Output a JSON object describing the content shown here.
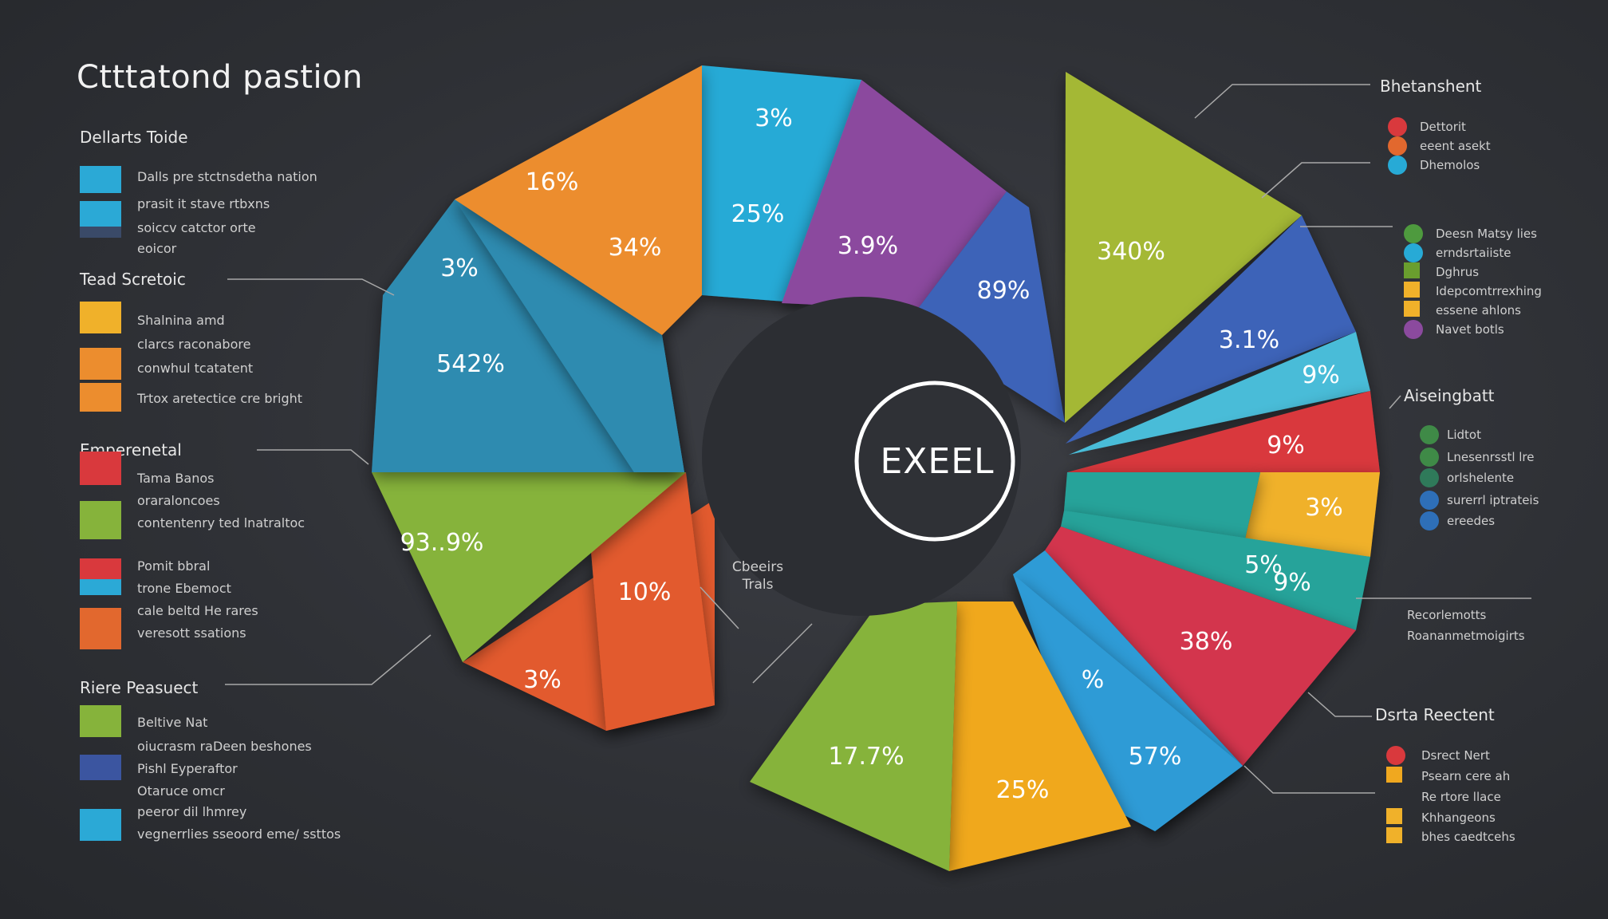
{
  "title": "Ctttatond pastion",
  "center_label": "EXEEL",
  "inner_note": [
    "Cbeeirs",
    "Trals"
  ],
  "colors": {
    "background": "#2f3136",
    "orange": "#ec8d2e",
    "cyan": "#27aad6",
    "purple": "#8b4a9e",
    "blue": "#3d63b8",
    "teal": "#2d8bb0",
    "green": "#86b33b",
    "red_orange": "#e25a2d",
    "lime": "#a4b834",
    "red": "#d9393d",
    "yellow": "#f0a81f",
    "crimson": "#d3344e",
    "sea": "#27a39a"
  },
  "left_sections": [
    {
      "heading": "Dellarts Toide",
      "items": [
        {
          "text": "Dalls pre stctnsdetha nation",
          "color": "#2ba9d6"
        },
        {
          "text": "prasit it stave rtbxns",
          "color": "#2ba9d6"
        },
        {
          "text": "soiccv catctor orte",
          "color": "#3a4a68"
        },
        {
          "text": "eoicor",
          "color": ""
        }
      ]
    },
    {
      "heading": "Tead  Scretoic",
      "items": [
        {
          "text": "Shalnina amd",
          "color": "#f0b12a"
        },
        {
          "text": "clarcs raconabore",
          "color": "#ec8d2e"
        },
        {
          "text": "conwhul tcatatent",
          "color": "#ec8d2e"
        },
        {
          "text": "Trtox aretectice cre bright",
          "color": "#3b55a0"
        }
      ]
    },
    {
      "heading": "Emperenetal",
      "items": [
        {
          "text": "Tama Banos",
          "color": "#d9393d"
        },
        {
          "text": "oraraloncoes",
          "color": "#86b33b"
        },
        {
          "text": "contentenry ted lnatraltoc",
          "color": "#86b33b"
        },
        {
          "text": "Pomit bbral",
          "color": "#d9393d"
        },
        {
          "text": "trone Ebemoct",
          "color": "#2ba9d6"
        },
        {
          "text": "cale beltd He rares",
          "color": "#e2682e"
        },
        {
          "text": "veresott ssations",
          "color": "#e2682e"
        }
      ]
    },
    {
      "heading": "Riere  Peasuect",
      "items": [
        {
          "text": "Beltive Nat",
          "color": "#86b33b"
        },
        {
          "text": "oiucrasm raDeen beshones",
          "color": ""
        },
        {
          "text": "Pishl Eyperaftor",
          "color": "#3b55a0"
        },
        {
          "text": "Otaruce omcr",
          "color": ""
        },
        {
          "text": "peeror dil lhmrey",
          "color": "#2ba9d6"
        },
        {
          "text": "vegnerrlies sseoord eme/ ssttos",
          "color": ""
        }
      ]
    }
  ],
  "right_sections": [
    {
      "heading": "Bhetanshent",
      "items": [
        {
          "text": "Dettorit",
          "color": "#d9393d",
          "shape": "dot"
        },
        {
          "text": "eeent asekt",
          "color": "#e2682e",
          "shape": "dot"
        },
        {
          "text": "Dhemolos",
          "color": "#27aad6",
          "shape": "dot"
        }
      ]
    },
    {
      "heading": "",
      "items": [
        {
          "text": "Deesn Matsy lies",
          "color": "#4e9a3e",
          "shape": "dot"
        },
        {
          "text": "erndsrtaiiste",
          "color": "#27aad6",
          "shape": "dot"
        },
        {
          "text": "Dghrus",
          "color": "#6a9e2e",
          "shape": "sq"
        },
        {
          "text": "Idepcomtrrexhing",
          "color": "#f0b12a",
          "shape": "sq"
        },
        {
          "text": "essene ahlons",
          "color": "#f0b12a",
          "shape": "sq"
        },
        {
          "text": "Navet botls",
          "color": "#8b4a9e",
          "shape": "dot"
        }
      ]
    },
    {
      "heading": "Aiseingbatt",
      "items": [
        {
          "text": "Lidtot",
          "color": "#3f8a47",
          "shape": "dot"
        },
        {
          "text": "Lnesenrsstl lre",
          "color": "#3f8a47",
          "shape": "dot"
        },
        {
          "text": "orlshelente",
          "color": "#2f7a5a",
          "shape": "dot"
        },
        {
          "text": "surerrl iptrateis",
          "color": "#2e6fb8",
          "shape": "dot"
        },
        {
          "text": "ereedes",
          "color": "#2e6fb8",
          "shape": "dot"
        }
      ]
    },
    {
      "heading": "",
      "items": [
        {
          "text": "Recorlemotts",
          "color": "",
          "shape": "none"
        },
        {
          "text": "Roananmetmoigirts",
          "color": "",
          "shape": "none"
        }
      ]
    },
    {
      "heading": "Dsrta Reectent",
      "items": [
        {
          "text": "Dsrect Nert",
          "color": "#d9393d",
          "shape": "dot"
        },
        {
          "text": "Psearn cere ah",
          "color": "#f0a81f",
          "shape": "sq"
        },
        {
          "text": "Re rtore llace",
          "color": "",
          "shape": "none"
        },
        {
          "text": "Khhangeons",
          "color": "#f0b12a",
          "shape": "sq"
        },
        {
          "text": "bhes caedtcehs",
          "color": "#f0b12a",
          "shape": "sq"
        }
      ]
    }
  ],
  "chart_data": {
    "type": "pie",
    "title": "Ctttatond pastion",
    "center_label": "EXEEL",
    "slices": [
      {
        "label": "3%",
        "color": "#27aad6"
      },
      {
        "label": "25%",
        "color": "#27aad6"
      },
      {
        "label": "3.9%",
        "color": "#8b4a9e"
      },
      {
        "label": "89%",
        "color": "#3d63b8"
      },
      {
        "label": "340%",
        "color": "#a4b834"
      },
      {
        "label": "3.1%",
        "color": "#3d63b8"
      },
      {
        "label": "9%",
        "color": "#48bcd8"
      },
      {
        "label": "9%",
        "color": "#d9393d"
      },
      {
        "label": "3%",
        "color": "#f0b12a"
      },
      {
        "label": "5%",
        "color": "#27a39a"
      },
      {
        "label": "9%",
        "color": "#27a39a"
      },
      {
        "label": "38%",
        "color": "#d3344e"
      },
      {
        "label": "%",
        "color": "#2e9bd6"
      },
      {
        "label": "57%",
        "color": "#2e9bd6"
      },
      {
        "label": "25%",
        "color": "#f0a81f"
      },
      {
        "label": "17.7%",
        "color": "#86b33b"
      },
      {
        "label": "3%",
        "color": "#e25a2d"
      },
      {
        "label": "10%",
        "color": "#e25a2d"
      },
      {
        "label": "93..9%",
        "color": "#86b33b"
      },
      {
        "label": "542%",
        "color": "#2d8bb0"
      },
      {
        "label": "3%",
        "color": "#2d8bb0"
      },
      {
        "label": "16%",
        "color": "#ec8d2e"
      },
      {
        "label": "34%",
        "color": "#ec8d2e"
      }
    ]
  }
}
